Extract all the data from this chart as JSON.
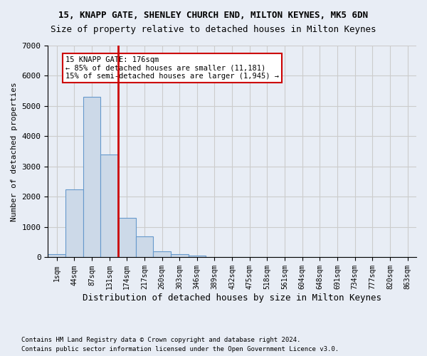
{
  "title": "15, KNAPP GATE, SHENLEY CHURCH END, MILTON KEYNES, MK5 6DN",
  "subtitle": "Size of property relative to detached houses in Milton Keynes",
  "xlabel": "Distribution of detached houses by size in Milton Keynes",
  "ylabel": "Number of detached properties",
  "footnote1": "Contains HM Land Registry data © Crown copyright and database right 2024.",
  "footnote2": "Contains public sector information licensed under the Open Government Licence v3.0.",
  "bar_values": [
    100,
    2250,
    5300,
    3400,
    1300,
    700,
    200,
    110,
    60,
    10,
    0,
    0,
    0,
    0,
    0,
    0,
    0,
    0,
    0,
    0,
    0
  ],
  "bar_labels": [
    "1sqm",
    "44sqm",
    "87sqm",
    "131sqm",
    "174sqm",
    "217sqm",
    "260sqm",
    "303sqm",
    "346sqm",
    "389sqm",
    "432sqm",
    "475sqm",
    "518sqm",
    "561sqm",
    "604sqm",
    "648sqm",
    "691sqm",
    "734sqm",
    "777sqm",
    "820sqm",
    "863sqm"
  ],
  "bar_color": "#ccd9e8",
  "bar_edgecolor": "#6699cc",
  "annotation_text": "15 KNAPP GATE: 176sqm\n← 85% of detached houses are smaller (11,181)\n15% of semi-detached houses are larger (1,945) →",
  "annotation_box_color": "#ffffff",
  "annotation_box_edgecolor": "#cc0000",
  "vline_color": "#cc0000",
  "vline_bar_index": 4,
  "ylim": [
    0,
    7000
  ],
  "yticks": [
    0,
    1000,
    2000,
    3000,
    4000,
    5000,
    6000,
    7000
  ],
  "grid_color": "#cccccc",
  "background_color": "#e8edf5",
  "plot_background": "#e8edf5"
}
